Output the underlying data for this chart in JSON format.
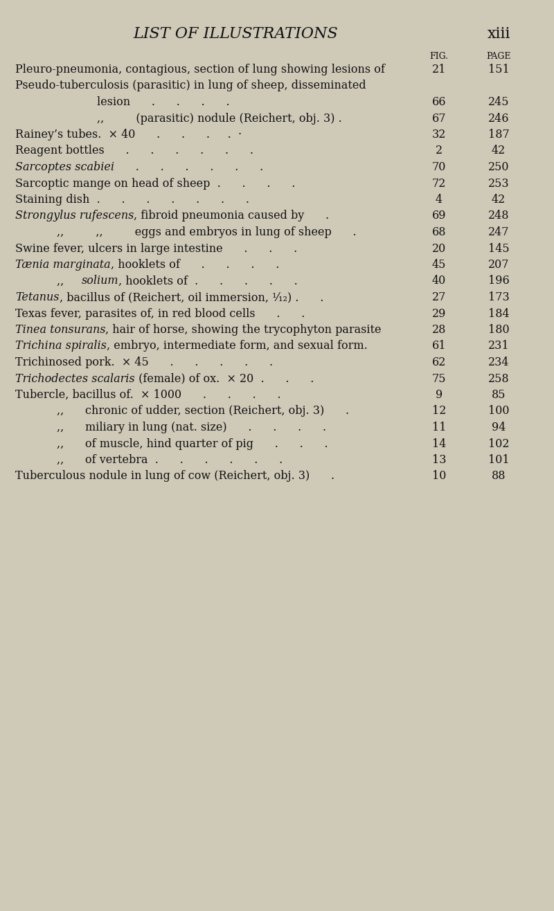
{
  "bg_color": "#cfc9b8",
  "title": "LIST OF ILLUSTRATIONS",
  "page_label": "xiii",
  "text_color": "#111111",
  "entries": [
    {
      "text": "Pleuro-pneumonia, contagious, section of lung showing lesions of",
      "indent": 0,
      "fig": "21",
      "page": "151",
      "style": "roman"
    },
    {
      "text": "Pseudo-tuberculosis (parasitic) in lung of sheep, disseminated",
      "indent": 0,
      "fig": "",
      "page": "",
      "style": "roman"
    },
    {
      "text": "lesion      .      .      .      .",
      "indent": 2,
      "fig": "66",
      "page": "245",
      "style": "roman"
    },
    {
      "text": ",,         (parasitic) nodule (Reichert, obj. 3) .",
      "indent": 2,
      "fig": "67",
      "page": "246",
      "style": "roman"
    },
    {
      "text": "Rainey’s tubes.  × 40      .      .      .     .  ·",
      "indent": 0,
      "fig": "32",
      "page": "187",
      "style": "roman"
    },
    {
      "text": "Reagent bottles      .      .      .      .      .      .",
      "indent": 0,
      "fig": "2",
      "page": "42",
      "style": "roman"
    },
    {
      "text": "Sarcoptes scabiei      .      .      .      .      .      .",
      "indent": 0,
      "fig": "70",
      "page": "250",
      "style": "italic",
      "italic": "Sarcoptes scabiei      .      .      .      .      .      ."
    },
    {
      "text": "Sarcoptic mange on head of sheep  .      .      .      .",
      "indent": 0,
      "fig": "72",
      "page": "253",
      "style": "roman"
    },
    {
      "text": "Staining dish  .      .      .      .      .      .      .",
      "indent": 0,
      "fig": "4",
      "page": "42",
      "style": "roman"
    },
    {
      "text": "Strongylus rufescens",
      "text2": ", fibroid pneumonia caused by      .",
      "indent": 0,
      "fig": "69",
      "page": "248",
      "style": "italic_prefix",
      "italic": "Strongylus rufescens",
      "roman": ", fibroid pneumonia caused by      ."
    },
    {
      "text": ",,         ,,         eggs and embryos in lung of sheep      .",
      "indent": 1,
      "fig": "68",
      "page": "247",
      "style": "roman"
    },
    {
      "text": "Swine fever, ulcers in large intestine      .      .      .",
      "indent": 0,
      "fig": "20",
      "page": "145",
      "style": "roman"
    },
    {
      "text": "Tænia marginata",
      "text2": ", hooklets of      .      .      .      .",
      "indent": 0,
      "fig": "45",
      "page": "207",
      "style": "italic_prefix",
      "italic": "Tænia marginata",
      "roman": ", hooklets of      .      .      .      ."
    },
    {
      "text": ",,",
      "text2": "     solium",
      "text3": ", hooklets of  .      .      .      .      .",
      "indent": 1,
      "fig": "40",
      "page": "196",
      "style": "comma_italic",
      "comma": ",,",
      "italic": "solium",
      "roman": ", hooklets of  .      .      .      .      ."
    },
    {
      "text": "Tetanus",
      "text2": ", bacillus of (Reichert, oil immersion, ¹⁄₁₂) .      .",
      "indent": 0,
      "fig": "27",
      "page": "173",
      "style": "italic_prefix",
      "italic": "Tetanus",
      "roman": ", bacillus of (Reichert, oil immersion, ¹⁄₁₂) .      ."
    },
    {
      "text": "Texas fever, parasites of, in red blood cells      .      .",
      "indent": 0,
      "fig": "29",
      "page": "184",
      "style": "roman"
    },
    {
      "text": "Tinea tonsurans",
      "text2": ", hair of horse, showing the trycophyton parasite",
      "indent": 0,
      "fig": "28",
      "page": "180",
      "style": "italic_prefix",
      "italic": "Tinea tonsurans",
      "roman": ", hair of horse, showing the trycophyton parasite"
    },
    {
      "text": "Trichina spiralis",
      "text2": ", embryo, intermediate form, and sexual form.",
      "indent": 0,
      "fig": "61",
      "page": "231",
      "style": "italic_prefix",
      "italic": "Trichina spiralis",
      "roman": ", embryo, intermediate form, and sexual form."
    },
    {
      "text": "Trichinosed pork.  × 45      .      .      .      .      .",
      "indent": 0,
      "fig": "62",
      "page": "234",
      "style": "roman"
    },
    {
      "text": "Trichodectes scalaris",
      "text2": " (female) of ox.  × 20  .      .      .",
      "indent": 0,
      "fig": "75",
      "page": "258",
      "style": "italic_prefix",
      "italic": "Trichodectes scalaris",
      "roman": " (female) of ox.  × 20  .      .      ."
    },
    {
      "text": "Tubercle, bacillus of.  × 1000      .      .      .      .",
      "indent": 0,
      "fig": "9",
      "page": "85",
      "style": "roman"
    },
    {
      "text": ",,      chronic of udder, section (Reichert, obj. 3)      .",
      "indent": 1,
      "fig": "12",
      "page": "100",
      "style": "roman"
    },
    {
      "text": ",,      miliary in lung (nat. size)      .      .      .      .",
      "indent": 1,
      "fig": "11",
      "page": "94",
      "style": "roman"
    },
    {
      "text": ",,      of muscle, hind quarter of pig      .      .      .",
      "indent": 1,
      "fig": "14",
      "page": "102",
      "style": "roman"
    },
    {
      "text": ",,      of vertebra  .      .      .      .      .      .",
      "indent": 1,
      "fig": "13",
      "page": "101",
      "style": "roman"
    },
    {
      "text": "Tuberculous nodule in lung of cow (Reichert, obj. 3)      .",
      "indent": 0,
      "fig": "10",
      "page": "88",
      "style": "roman"
    }
  ]
}
